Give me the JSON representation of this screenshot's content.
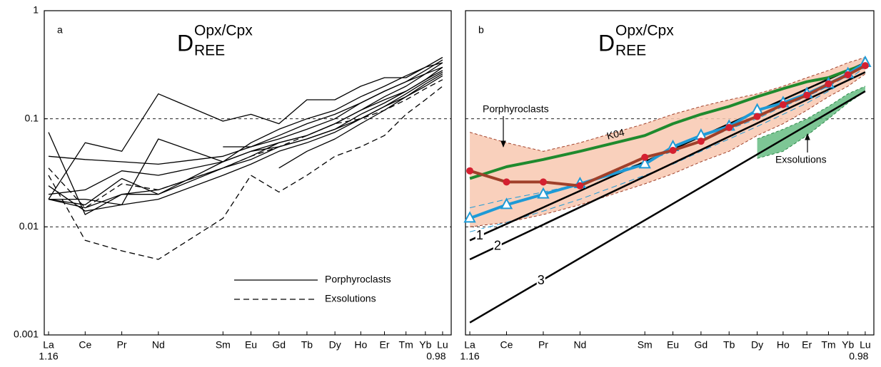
{
  "chart_data": [
    {
      "type": "line",
      "panel_label": "a",
      "title": {
        "main": "D",
        "sup": "Opx/Cpx",
        "sub": "REE"
      },
      "categories": [
        "La",
        "Ce",
        "Pr",
        "Nd",
        "Sm",
        "Eu",
        "Gd",
        "Tb",
        "Dy",
        "Ho",
        "Er",
        "Tm",
        "Yb",
        "Lu"
      ],
      "x": [
        1.16,
        1.143,
        1.126,
        1.109,
        1.079,
        1.066,
        1.053,
        1.04,
        1.027,
        1.015,
        1.004,
        0.994,
        0.985,
        0.977
      ],
      "xlim": [
        1.162,
        0.973
      ],
      "xticks": [
        1.16,
        0.98
      ],
      "ylim": [
        0.001,
        1
      ],
      "yticks": [
        0.001,
        0.01,
        0.1,
        1
      ],
      "log_y": true,
      "grid_y": [
        0.01,
        0.1
      ],
      "legend": [
        {
          "name": "Porphyroclasts",
          "dashed": false
        },
        {
          "name": "Exsolutions",
          "dashed": true
        }
      ],
      "series": [
        {
          "color": "#000000",
          "dashed": false,
          "values": [
            0.075,
            0.013,
            0.02,
            0.02,
            0.04,
            0.05,
            0.06,
            0.07,
            0.09,
            0.12,
            0.16,
            0.2,
            0.26,
            0.33
          ]
        },
        {
          "color": "#000000",
          "dashed": false,
          "values": [
            0.045,
            0.042,
            0.04,
            0.038,
            0.045,
            0.055,
            0.065,
            0.08,
            0.1,
            0.14,
            0.18,
            0.22,
            0.28,
            0.35
          ]
        },
        {
          "color": "#000000",
          "dashed": false,
          "values": [
            0.018,
            0.06,
            0.05,
            0.17,
            0.095,
            0.11,
            0.09,
            0.15,
            0.15,
            0.2,
            0.24,
            0.24,
            0.3,
            0.37
          ]
        },
        {
          "color": "#000000",
          "dashed": false,
          "values": [
            0.024,
            0.014,
            0.016,
            0.065,
            0.04,
            0.06,
            0.08,
            0.1,
            0.12,
            0.16,
            0.2,
            0.25,
            0.3,
            0.33
          ]
        },
        {
          "color": "#000000",
          "dashed": false,
          "values": [
            0.018,
            0.016,
            0.028,
            0.02,
            0.035,
            0.045,
            0.06,
            0.07,
            0.09,
            0.12,
            0.15,
            0.18,
            0.23,
            0.28
          ]
        },
        {
          "color": "#000000",
          "dashed": false,
          "values": [
            0.02,
            0.022,
            0.033,
            0.03,
            0.04,
            0.05,
            0.055,
            0.065,
            0.08,
            0.1,
            0.13,
            0.16,
            0.2,
            0.25
          ]
        },
        {
          "color": "#000000",
          "dashed": false,
          "values": [
            0.018,
            0.018,
            0.016,
            0.018,
            0.03,
            0.038,
            0.05,
            0.06,
            0.075,
            0.1,
            0.13,
            0.17,
            0.22,
            0.27
          ]
        },
        {
          "color": "#000000",
          "dashed": false,
          "values": [
            0.018,
            0.015,
            0.02,
            0.022,
            0.035,
            0.042,
            0.055,
            0.065,
            0.08,
            0.11,
            0.14,
            0.18,
            0.23,
            0.3
          ]
        },
        {
          "color": "#000000",
          "dashed": false,
          "values": [
            null,
            null,
            null,
            null,
            0.055,
            0.055,
            0.07,
            0.09,
            0.11,
            0.14,
            0.18,
            0.22,
            0.26,
            0.3
          ]
        },
        {
          "color": "#000000",
          "dashed": false,
          "values": [
            null,
            null,
            null,
            null,
            null,
            null,
            0.035,
            0.05,
            0.065,
            0.09,
            0.12,
            0.16,
            0.21,
            0.26
          ]
        },
        {
          "color": "#000000",
          "dashed": true,
          "values": [
            0.03,
            0.0075,
            0.006,
            0.005,
            0.012,
            0.03,
            0.021,
            0.03,
            0.045,
            0.055,
            0.07,
            0.11,
            0.15,
            0.2
          ]
        },
        {
          "color": "#000000",
          "dashed": true,
          "values": [
            0.035,
            0.015,
            0.025,
            0.022,
            0.035,
            0.045,
            0.055,
            0.07,
            0.09,
            0.1,
            0.12,
            0.15,
            0.19,
            0.23
          ]
        }
      ]
    },
    {
      "type": "line",
      "panel_label": "b",
      "title": {
        "main": "D",
        "sup": "Opx/Cpx",
        "sub": "REE"
      },
      "categories": [
        "La",
        "Ce",
        "Pr",
        "Nd",
        "Sm",
        "Eu",
        "Gd",
        "Tb",
        "Dy",
        "Ho",
        "Er",
        "Tm",
        "Yb",
        "Lu"
      ],
      "x": [
        1.16,
        1.143,
        1.126,
        1.109,
        1.079,
        1.066,
        1.053,
        1.04,
        1.027,
        1.015,
        1.004,
        0.994,
        0.985,
        0.977
      ],
      "xlim": [
        1.162,
        0.973
      ],
      "xticks": [
        1.16,
        0.98
      ],
      "ylim": [
        0.001,
        1
      ],
      "log_y": true,
      "grid_y": [
        0.01,
        0.1
      ],
      "bands": [
        {
          "name": "Porphyroclasts",
          "fill": "#f8c8b0",
          "edge": "#a0402a",
          "upper": [
            0.075,
            0.06,
            0.05,
            0.06,
            0.09,
            0.11,
            0.13,
            0.15,
            0.17,
            0.2,
            0.24,
            0.28,
            0.33,
            0.37
          ],
          "lower": [
            0.01,
            0.011,
            0.013,
            0.016,
            0.025,
            0.031,
            0.04,
            0.05,
            0.07,
            0.09,
            0.12,
            0.16,
            0.2,
            0.26
          ]
        },
        {
          "name": "Exsolutions",
          "fill": "#5cb87a",
          "edge": "#2e8b4a",
          "upper": [
            null,
            null,
            null,
            null,
            null,
            null,
            null,
            null,
            0.065,
            0.08,
            0.1,
            0.13,
            0.17,
            0.2
          ],
          "lower": [
            null,
            null,
            null,
            null,
            null,
            null,
            null,
            null,
            0.043,
            0.05,
            0.07,
            0.1,
            0.14,
            0.18
          ]
        }
      ],
      "series": [
        {
          "color": "#1e9ad6",
          "dashed": true,
          "width": 1,
          "values": [
            0.015,
            0.018,
            0.021,
            0.025,
            0.04,
            0.05,
            0.062,
            0.08,
            0.1,
            0.13,
            0.16,
            0.2,
            0.25,
            0.32
          ]
        },
        {
          "color": "#1e9ad6",
          "dashed": true,
          "width": 1,
          "values": [
            0.009,
            0.011,
            0.014,
            0.018,
            0.03,
            0.038,
            0.05,
            0.065,
            0.085,
            0.11,
            0.14,
            0.18,
            0.23,
            0.3
          ]
        },
        {
          "name": "1",
          "color": "#000000",
          "width": 2.5,
          "x": [
            1.16,
            0.977
          ],
          "values": [
            0.0075,
            0.33
          ]
        },
        {
          "name": "2",
          "color": "#000000",
          "width": 2.5,
          "x": [
            1.16,
            0.977
          ],
          "values": [
            0.005,
            0.27
          ]
        },
        {
          "name": "3",
          "color": "#000000",
          "width": 2.5,
          "x": [
            1.16,
            0.977
          ],
          "values": [
            0.0013,
            0.18
          ]
        },
        {
          "name": "K04",
          "color": "#1f8a2e",
          "width": 4,
          "values": [
            0.028,
            0.036,
            0.042,
            0.05,
            0.07,
            0.09,
            0.11,
            0.13,
            0.16,
            0.19,
            0.22,
            0.24,
            0.28,
            0.32
          ]
        },
        {
          "color": "#1e9ad6",
          "width": 4,
          "marker": "triangle",
          "values": [
            0.012,
            0.016,
            0.02,
            0.025,
            0.038,
            0.055,
            0.07,
            0.085,
            0.12,
            0.14,
            0.17,
            0.21,
            0.26,
            0.33
          ]
        },
        {
          "color": "#a0402a",
          "width": 4,
          "marker": "circle",
          "marker_color": "#d42030",
          "values": [
            0.033,
            0.026,
            0.026,
            0.024,
            0.044,
            0.051,
            0.062,
            0.083,
            0.105,
            0.135,
            0.165,
            0.21,
            0.255,
            0.31
          ]
        }
      ]
    }
  ]
}
